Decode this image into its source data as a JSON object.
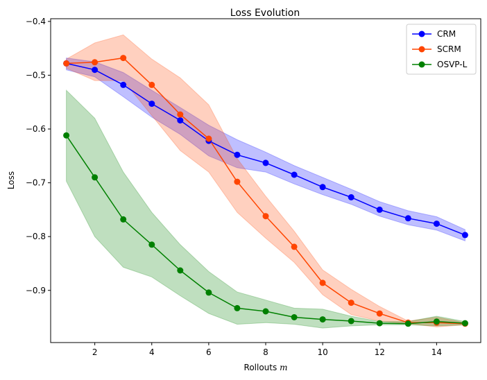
{
  "chart_data": {
    "type": "line",
    "title": "Loss Evolution",
    "xlabel": "Rollouts",
    "xlabel_var": "m",
    "ylabel": "Loss",
    "xlim": [
      0.45,
      15.55
    ],
    "ylim": [
      -0.997,
      -0.395
    ],
    "xticks": [
      2,
      4,
      6,
      8,
      10,
      12,
      14
    ],
    "yticks": [
      -0.4,
      -0.5,
      -0.6,
      -0.7,
      -0.8,
      -0.9
    ],
    "ytick_labels": [
      "−0.4",
      "−0.5",
      "−0.6",
      "−0.7",
      "−0.8",
      "−0.9"
    ],
    "legend_position": "top-right",
    "x": [
      1,
      2,
      3,
      4,
      5,
      6,
      7,
      8,
      9,
      10,
      11,
      12,
      13,
      14,
      15
    ],
    "series": [
      {
        "name": "CRM",
        "color": "#0000ff",
        "values": [
          -0.478,
          -0.49,
          -0.518,
          -0.553,
          -0.584,
          -0.622,
          -0.648,
          -0.663,
          -0.685,
          -0.708,
          -0.727,
          -0.75,
          -0.766,
          -0.776,
          -0.797
        ],
        "band_upper": [
          -0.468,
          -0.475,
          -0.495,
          -0.528,
          -0.56,
          -0.593,
          -0.62,
          -0.643,
          -0.668,
          -0.69,
          -0.712,
          -0.735,
          -0.752,
          -0.763,
          -0.787
        ],
        "band_lower": [
          -0.49,
          -0.503,
          -0.54,
          -0.578,
          -0.61,
          -0.65,
          -0.672,
          -0.68,
          -0.702,
          -0.722,
          -0.74,
          -0.762,
          -0.778,
          -0.788,
          -0.808
        ]
      },
      {
        "name": "SCRM",
        "color": "#ff4500",
        "values": [
          -0.478,
          -0.476,
          -0.468,
          -0.518,
          -0.573,
          -0.618,
          -0.698,
          -0.762,
          -0.819,
          -0.886,
          -0.923,
          -0.943,
          -0.96,
          -0.96,
          -0.962
        ],
        "band_upper": [
          -0.47,
          -0.44,
          -0.425,
          -0.47,
          -0.505,
          -0.555,
          -0.655,
          -0.725,
          -0.79,
          -0.862,
          -0.898,
          -0.93,
          -0.957,
          -0.95,
          -0.96
        ],
        "band_lower": [
          -0.487,
          -0.51,
          -0.51,
          -0.575,
          -0.64,
          -0.68,
          -0.755,
          -0.803,
          -0.848,
          -0.908,
          -0.945,
          -0.957,
          -0.962,
          -0.968,
          -0.964
        ]
      },
      {
        "name": "OSVP-L",
        "color": "#008000",
        "values": [
          -0.612,
          -0.69,
          -0.768,
          -0.815,
          -0.863,
          -0.904,
          -0.933,
          -0.939,
          -0.95,
          -0.954,
          -0.957,
          -0.961,
          -0.962,
          -0.958,
          -0.961
        ],
        "band_upper": [
          -0.528,
          -0.58,
          -0.68,
          -0.755,
          -0.815,
          -0.865,
          -0.903,
          -0.918,
          -0.933,
          -0.935,
          -0.948,
          -0.958,
          -0.958,
          -0.948,
          -0.958
        ],
        "band_lower": [
          -0.697,
          -0.8,
          -0.857,
          -0.875,
          -0.91,
          -0.943,
          -0.963,
          -0.96,
          -0.963,
          -0.97,
          -0.966,
          -0.964,
          -0.964,
          -0.966,
          -0.964
        ]
      }
    ]
  }
}
